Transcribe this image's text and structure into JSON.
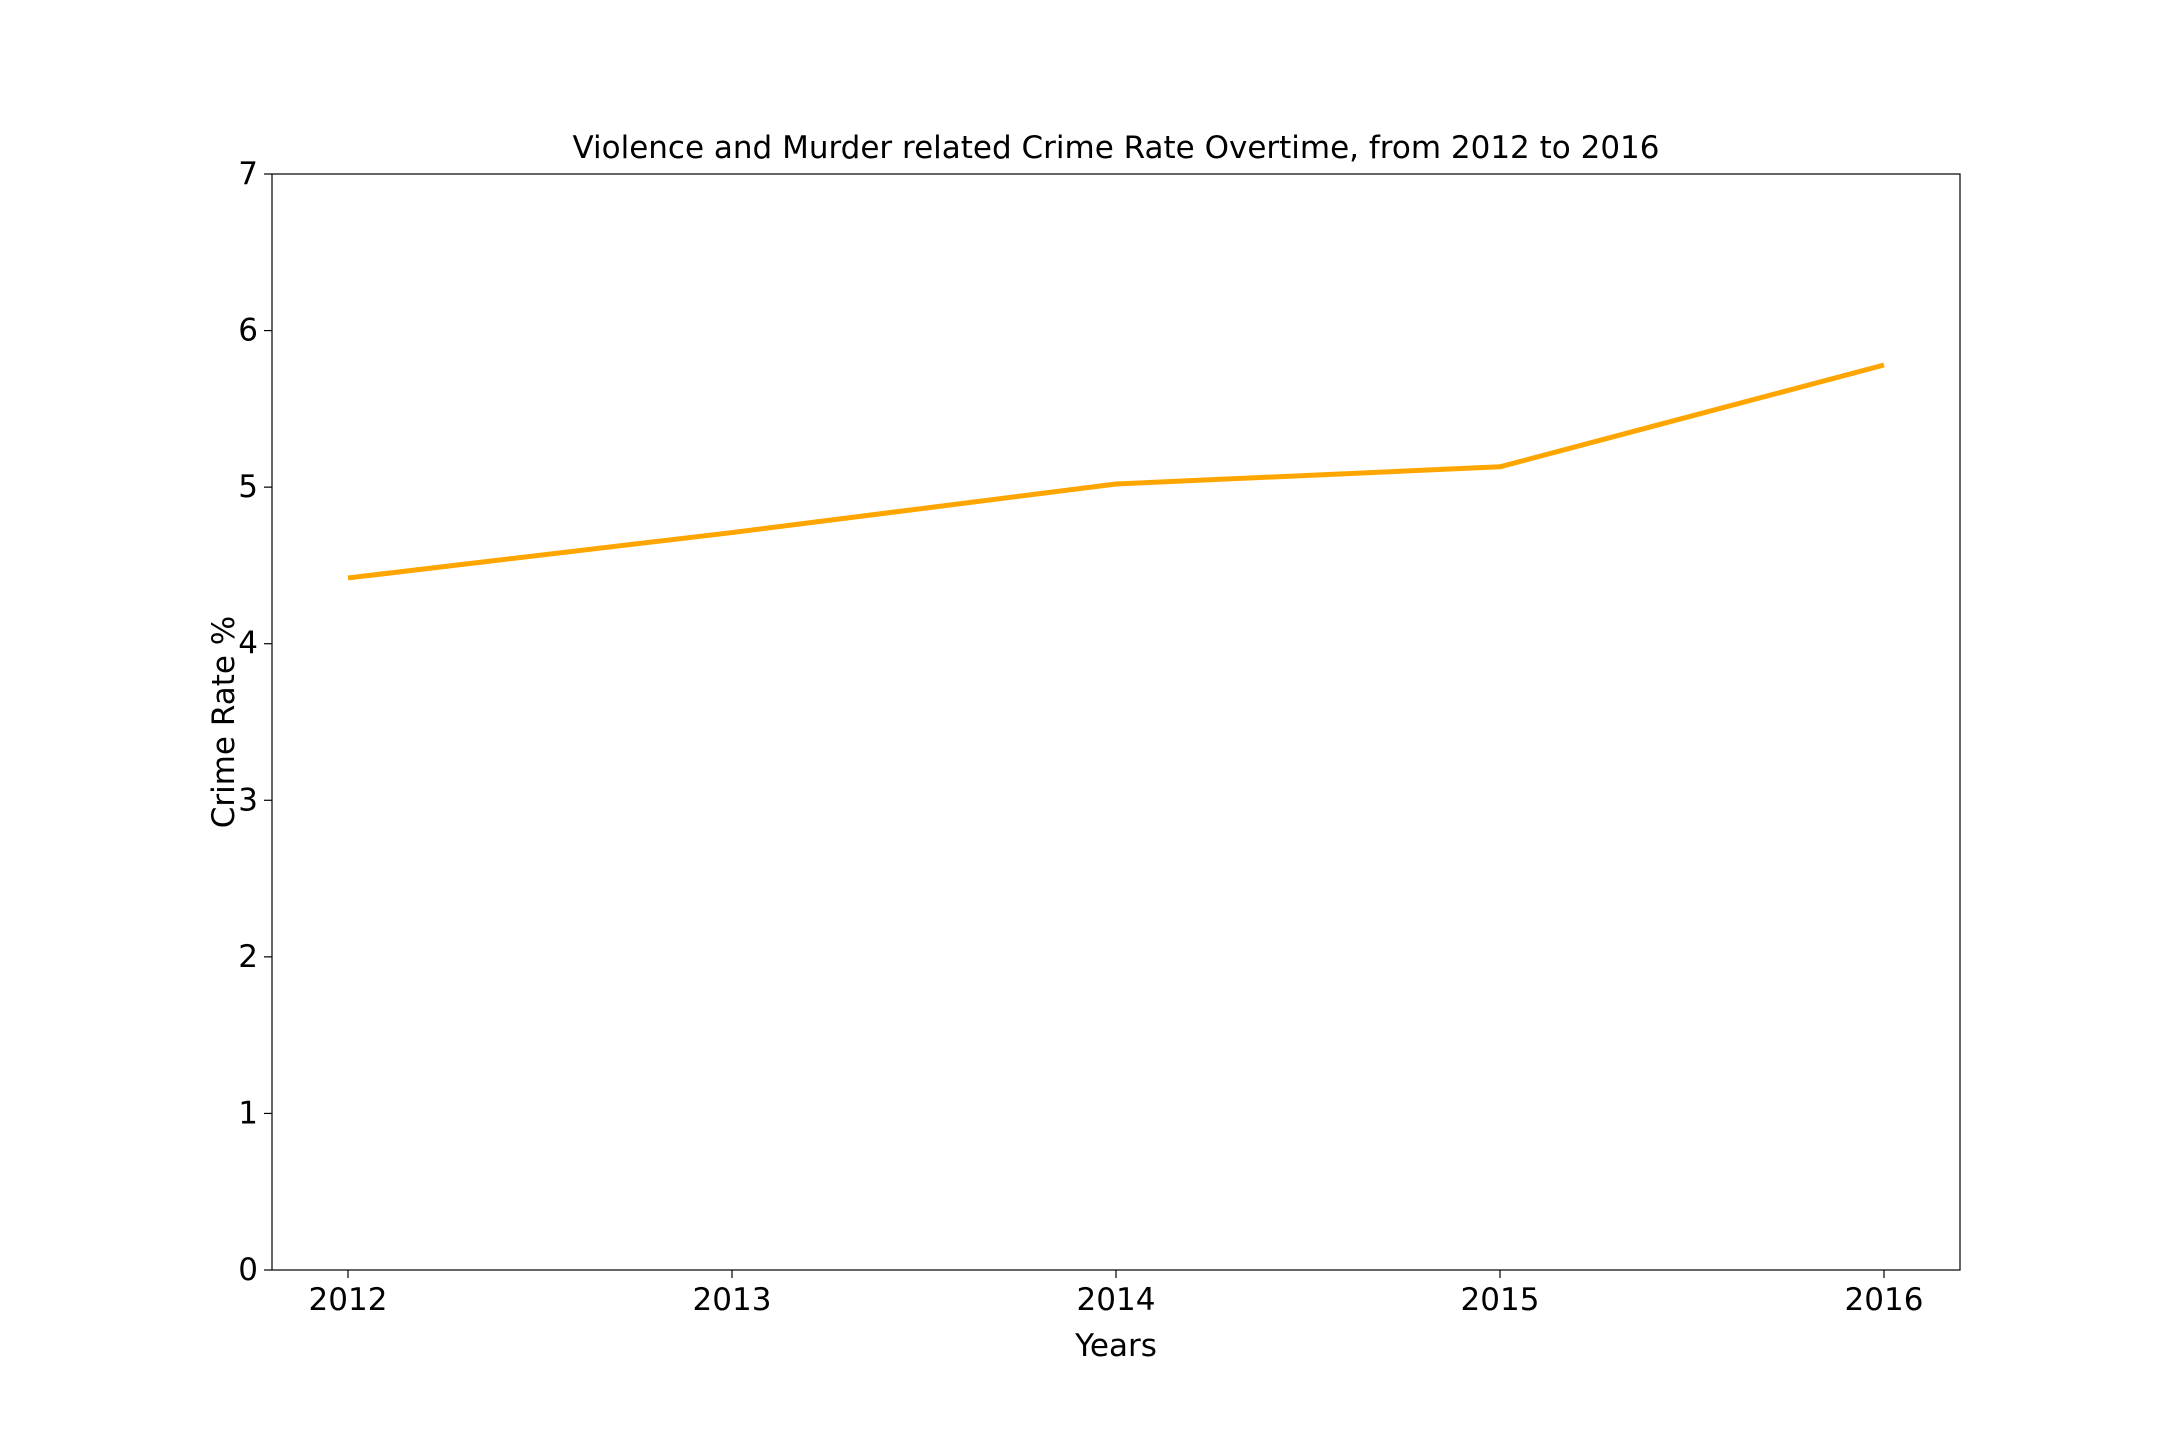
{
  "chart_data": {
    "type": "line",
    "title": "Violence and Murder related Crime Rate Overtime, from 2012 to 2016",
    "xlabel": "Years",
    "ylabel": "Crime Rate %",
    "x": [
      "2012",
      "2013",
      "2014",
      "2015",
      "2016"
    ],
    "y_ticks": [
      "0",
      "1",
      "2",
      "3",
      "4",
      "5",
      "6",
      "7"
    ],
    "ylim": [
      0,
      7
    ],
    "grid": false,
    "series": [
      {
        "values": [
          4.42,
          4.71,
          5.02,
          5.13,
          5.78
        ],
        "color": "#ffa500"
      }
    ]
  }
}
